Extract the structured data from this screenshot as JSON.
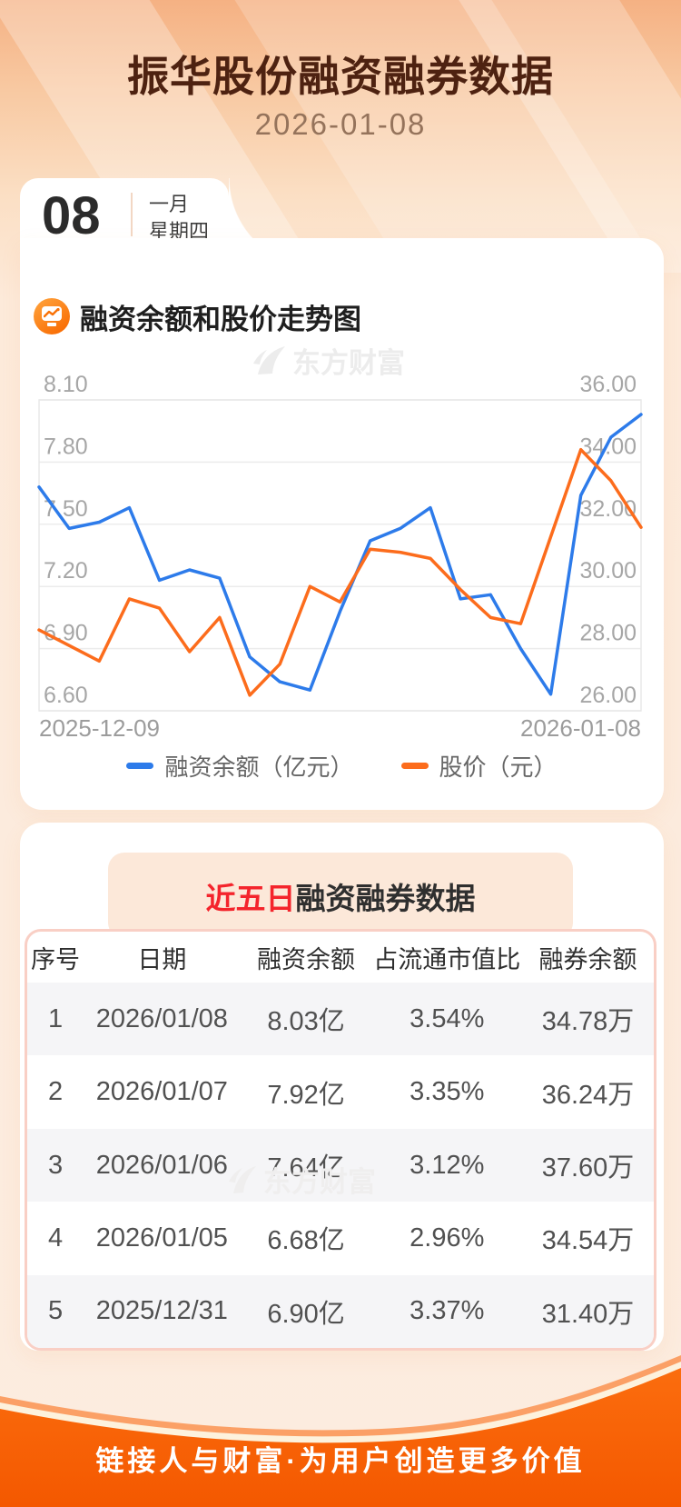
{
  "page": {
    "title": "振华股份融资融券数据",
    "date": "2026-01-08",
    "date_card": {
      "day": "08",
      "month": "一月",
      "weekday": "星期四"
    },
    "watermark": "东方财富",
    "footer_slogan": "链接人与财富·为用户创造更多价值",
    "colors": {
      "brand_orange": "#f95f03",
      "highlight_red": "#f4242c",
      "series_blue": "#2d7bea",
      "series_orange": "#fc6c1c"
    }
  },
  "chart_section": {
    "title": "融资余额和股价走势图",
    "legend": [
      {
        "label": "融资余额（亿元）",
        "color": "#2d7bea"
      },
      {
        "label": "股价（元）",
        "color": "#fc6c1c"
      }
    ]
  },
  "chart_data": {
    "type": "line",
    "title": "融资余额和股价走势图",
    "x": [
      "2025-12-09",
      "2025-12-10",
      "2025-12-11",
      "2025-12-12",
      "2025-12-15",
      "2025-12-16",
      "2025-12-17",
      "2025-12-18",
      "2025-12-19",
      "2025-12-22",
      "2025-12-23",
      "2025-12-24",
      "2025-12-25",
      "2025-12-26",
      "2025-12-29",
      "2025-12-30",
      "2025-12-31",
      "2026-01-05",
      "2026-01-06",
      "2026-01-07",
      "2026-01-08"
    ],
    "x_axis_labels": [
      "2025-12-09",
      "2026-01-08"
    ],
    "series": [
      {
        "name": "融资余额（亿元）",
        "axis": "left",
        "color": "#2d7bea",
        "values": [
          7.68,
          7.48,
          7.51,
          7.58,
          7.23,
          7.28,
          7.24,
          6.86,
          6.74,
          6.7,
          7.08,
          7.42,
          7.48,
          7.58,
          7.14,
          7.16,
          6.9,
          6.68,
          7.64,
          7.92,
          8.03
        ]
      },
      {
        "name": "股价（元）",
        "axis": "right",
        "color": "#fc6c1c",
        "values": [
          28.6,
          28.1,
          27.6,
          29.6,
          29.3,
          27.9,
          29.0,
          26.5,
          27.5,
          30.0,
          29.5,
          31.2,
          31.1,
          30.9,
          29.9,
          29.0,
          28.8,
          31.6,
          34.4,
          33.4,
          31.9
        ]
      }
    ],
    "left_axis": {
      "min": 6.6,
      "max": 8.1,
      "ticks": [
        "8.10",
        "7.80",
        "7.50",
        "7.20",
        "6.90",
        "6.60"
      ]
    },
    "right_axis": {
      "min": 26.0,
      "max": 36.0,
      "ticks": [
        "36.00",
        "34.00",
        "32.00",
        "30.00",
        "28.00",
        "26.00"
      ]
    },
    "grid": true,
    "legend_position": "bottom"
  },
  "table_section": {
    "title_highlight": "近五日",
    "title_rest": "融资融券数据",
    "headers": [
      "序号",
      "日期",
      "融资余额",
      "占流通市值比",
      "融券余额"
    ],
    "rows": [
      [
        "1",
        "2026/01/08",
        "8.03亿",
        "3.54%",
        "34.78万"
      ],
      [
        "2",
        "2026/01/07",
        "7.92亿",
        "3.35%",
        "36.24万"
      ],
      [
        "3",
        "2026/01/06",
        "7.64亿",
        "3.12%",
        "37.60万"
      ],
      [
        "4",
        "2026/01/05",
        "6.68亿",
        "2.96%",
        "34.54万"
      ],
      [
        "5",
        "2025/12/31",
        "6.90亿",
        "3.37%",
        "31.40万"
      ]
    ]
  }
}
